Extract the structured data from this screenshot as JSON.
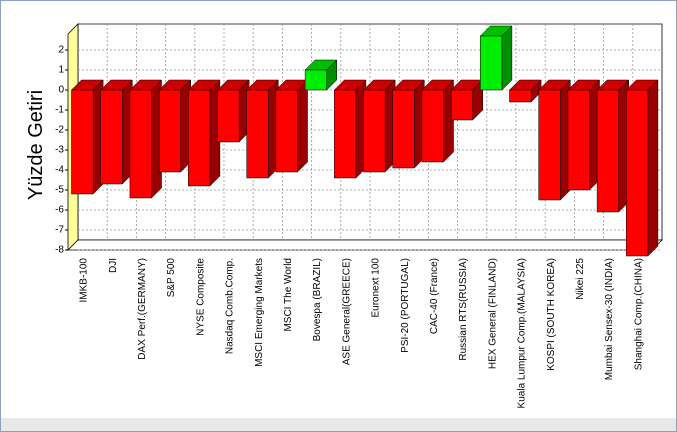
{
  "chart_data": {
    "type": "bar3d",
    "y_label": "Yüzde Getiri",
    "categories": [
      "IMKB-100",
      "DJI",
      "DAX Perf.(GERMANY)",
      "S&P 500",
      "NYSE Composite",
      "Nasdaq Comb.Comp.",
      "MSCI Emerging Markets",
      "MSCI The World",
      "Bovespa (BRAZIL)",
      "ASE General(GREECE)",
      "Euronext 100",
      "PSI-20 (PORTUGAL)",
      "CAC-40 (France)",
      "Russian RTS(RUSSIA)",
      "HEX General (FINLAND)",
      "Kuala Lumpur Comp.(MALAYSIA)",
      "KOSPI (SOUTH KOREA)",
      "Nikei 225",
      "Mumbai Sensex-30 (INDIA)",
      "Shanghai Comp.(CHINA)"
    ],
    "values": [
      -5.2,
      -4.7,
      -5.4,
      -4.1,
      -4.8,
      -2.6,
      -4.4,
      -4.1,
      1.0,
      -4.4,
      -4.1,
      -3.9,
      -3.6,
      -1.5,
      2.7,
      -0.6,
      -5.5,
      -5.0,
      -6.1,
      -8.3
    ],
    "colors": [
      "#ff0000",
      "#ff0000",
      "#ff0000",
      "#ff0000",
      "#ff0000",
      "#ff0000",
      "#ff0000",
      "#ff0000",
      "#00ee00",
      "#ff0000",
      "#ff0000",
      "#ff0000",
      "#ff0000",
      "#ff0000",
      "#00ee00",
      "#ff0000",
      "#ff0000",
      "#ff0000",
      "#ff0000",
      "#ff0000"
    ],
    "ylim": [
      -8,
      2.8
    ],
    "yticks": [
      -8,
      -7,
      -6,
      -5,
      -4,
      -3,
      -2,
      -1,
      0,
      1,
      2
    ],
    "grid": true
  }
}
